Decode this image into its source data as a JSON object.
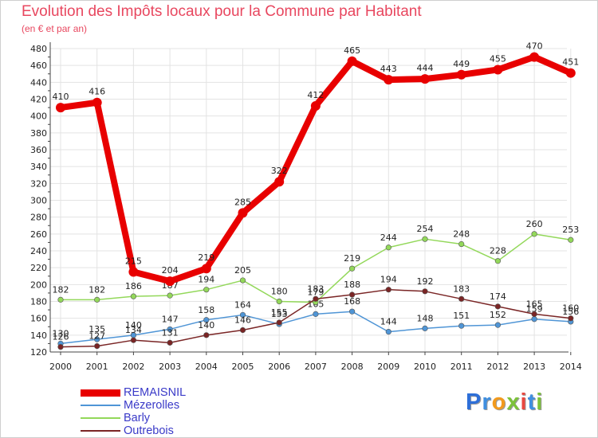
{
  "header": {
    "title": "Evolution des Impôts locaux pour la Commune par Habitant",
    "subtitle": "(en € et par an)"
  },
  "colors": {
    "title": "#e8475f",
    "legend_text": "#3a3ac8",
    "axis": "#444444",
    "grid": "#e3e3e3"
  },
  "brand": {
    "letters": [
      {
        "ch": "P",
        "color": "#2e6fd8"
      },
      {
        "ch": "r",
        "color": "#3f8fe0"
      },
      {
        "ch": "o",
        "color": "#f29a1d"
      },
      {
        "ch": "x",
        "color": "#7cc23a"
      },
      {
        "ch": "i",
        "color": "#e9473f"
      },
      {
        "ch": "t",
        "color": "#3f8fe0"
      },
      {
        "ch": "i",
        "color": "#7cc23a"
      }
    ]
  },
  "chart_data": {
    "type": "line",
    "title": "Evolution des Impôts locaux pour la Commune par Habitant",
    "subtitle": "(en € et par an)",
    "xlabel": "",
    "ylabel": "",
    "ylim": [
      120,
      480
    ],
    "ytick_step": 20,
    "grid": true,
    "legend_position": "bottom-left",
    "categories": [
      "2000",
      "2001",
      "2002",
      "2003",
      "2004",
      "2005",
      "2006",
      "2007",
      "2008",
      "2009",
      "2010",
      "2011",
      "2012",
      "2013",
      "2014"
    ],
    "series": [
      {
        "name": "REMAISNIL",
        "color": "#e80000",
        "bold": true,
        "values": [
          410,
          416,
          215,
          204,
          219,
          285,
          322,
          412,
          465,
          443,
          444,
          449,
          455,
          470,
          451
        ],
        "labels": [
          "410",
          "416",
          "215",
          "204",
          "219",
          "285",
          "322",
          "412",
          "465",
          "443",
          "444",
          "449",
          "455",
          "470",
          "451"
        ]
      },
      {
        "name": "Mézerolles",
        "color": "#4f95d6",
        "bold": false,
        "values": [
          130,
          135,
          140,
          147,
          158,
          164,
          153,
          165,
          168,
          144,
          148,
          151,
          152,
          159,
          156
        ],
        "labels": [
          "130",
          "135",
          "140",
          "147",
          "158",
          "164",
          "153",
          "165",
          "168",
          "144",
          "148",
          "151",
          "152",
          "159",
          "156"
        ]
      },
      {
        "name": "Barly",
        "color": "#93d85a",
        "bold": false,
        "values": [
          182,
          182,
          186,
          187,
          194,
          205,
          180,
          179,
          219,
          244,
          254,
          248,
          228,
          260,
          253
        ],
        "labels": [
          "182",
          "182",
          "186",
          "187",
          "194",
          "205",
          "180",
          "179",
          "219",
          "244",
          "254",
          "248",
          "228",
          "260",
          "253"
        ]
      },
      {
        "name": "Outrebois",
        "color": "#7a2525",
        "bold": false,
        "values": [
          126,
          127,
          134,
          131,
          140,
          146,
          155,
          183,
          188,
          194,
          192,
          183,
          174,
          165,
          160
        ],
        "labels": [
          "126",
          "127",
          "134",
          "131",
          "140",
          "146",
          "155",
          "183",
          "188",
          "194",
          "192",
          "183",
          "174",
          "165",
          "160"
        ]
      }
    ]
  }
}
